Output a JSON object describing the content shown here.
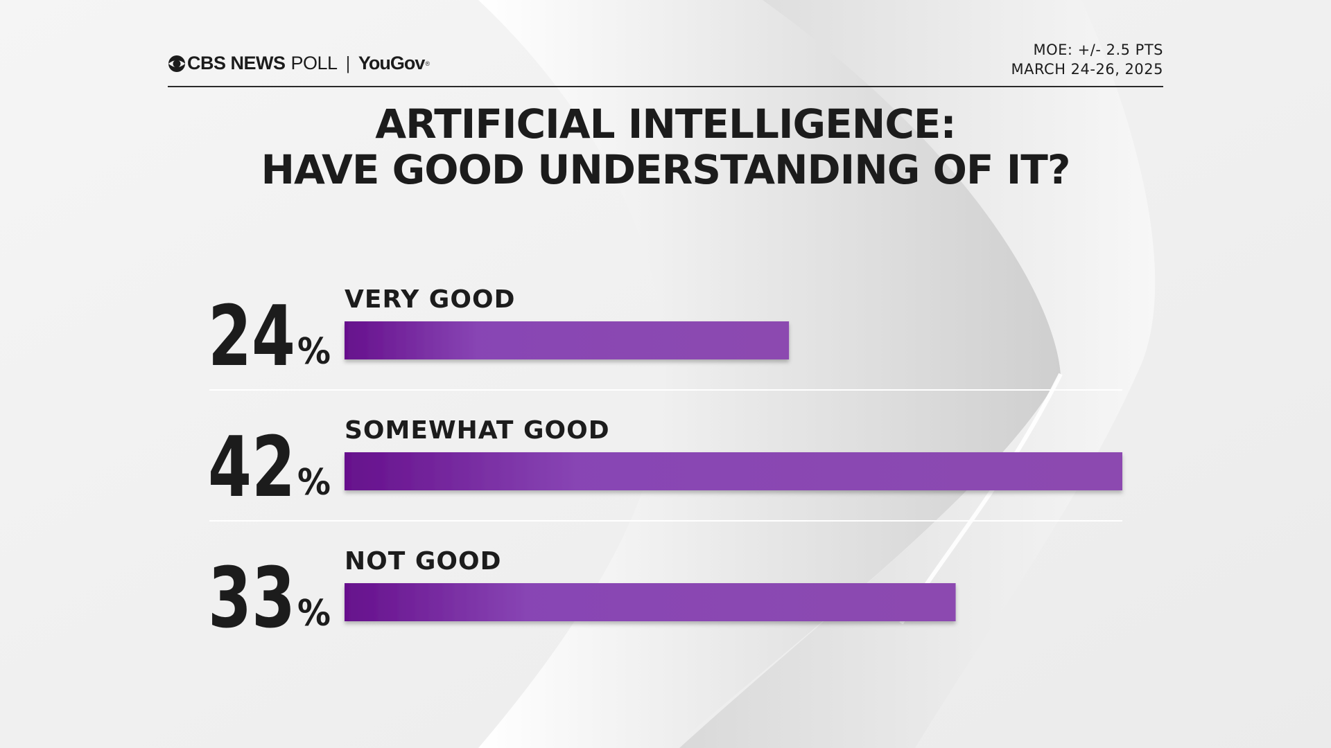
{
  "header": {
    "brand_cbs": "CBS NEWS",
    "brand_poll": "POLL",
    "brand_separator": "|",
    "brand_yougov": "YouGov",
    "brand_registered": "®",
    "moe": "MOE: +/- 2.5 PTS",
    "dates": "MARCH 24-26, 2025"
  },
  "icons": {
    "brand_logo": "cbs-eye-icon"
  },
  "colors": {
    "bar_start": "#66108c",
    "bar_mid": "#8845b4",
    "bar_end": "#8c4ab0",
    "text": "#1c1c1c",
    "background": "#f2f2f2"
  },
  "chart_data": {
    "type": "bar",
    "orientation": "horizontal",
    "title": "ARTIFICIAL INTELLIGENCE: HAVE GOOD UNDERSTANDING OF IT?",
    "title_lines": [
      "ARTIFICIAL INTELLIGENCE:",
      "HAVE GOOD UNDERSTANDING OF IT?"
    ],
    "categories": [
      "VERY GOOD",
      "SOMEWHAT GOOD",
      "NOT GOOD"
    ],
    "values": [
      24,
      42,
      33
    ],
    "value_labels": [
      "24",
      "42",
      "33"
    ],
    "unit": "%",
    "xlim": [
      0,
      42
    ],
    "grid": false,
    "legend": "none"
  }
}
